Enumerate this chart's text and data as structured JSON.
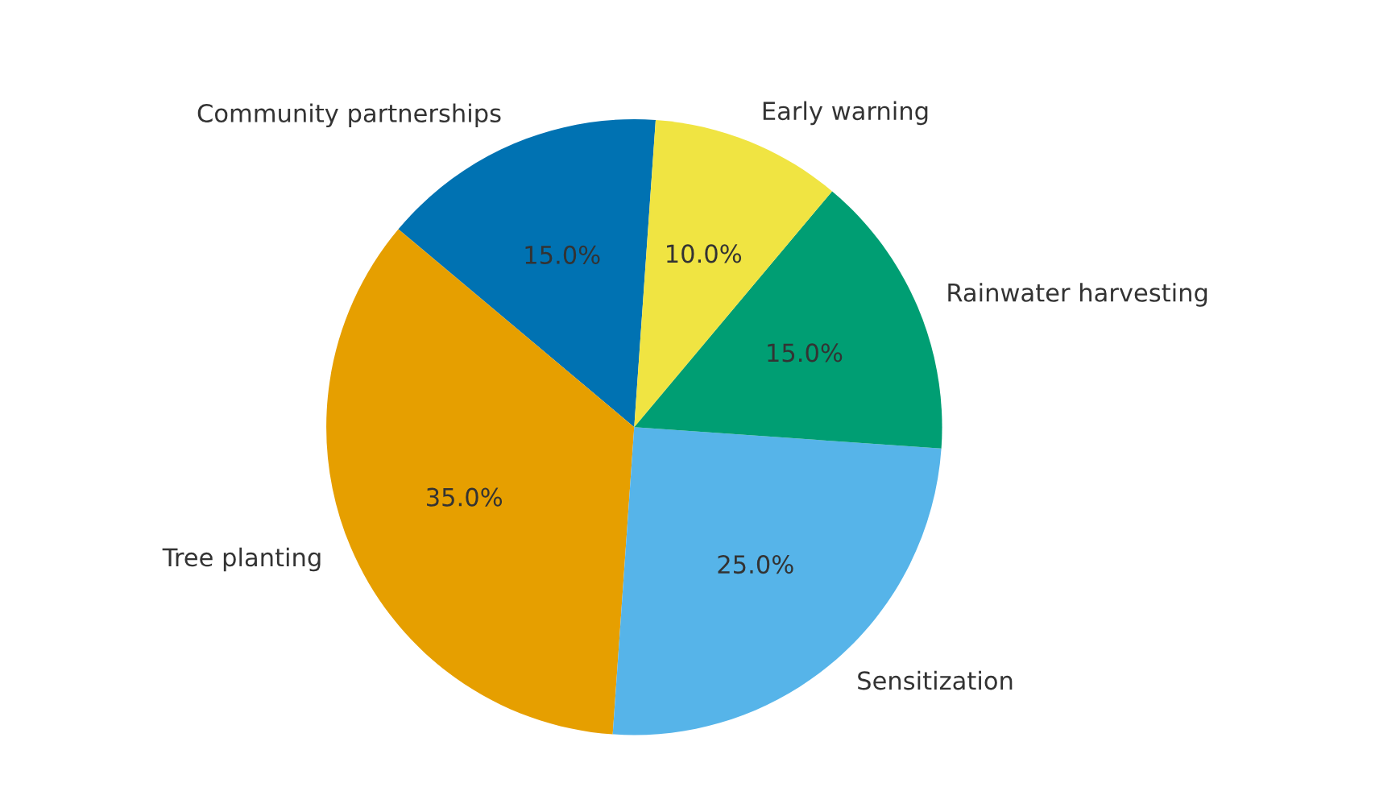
{
  "chart_data": {
    "type": "pie",
    "categories": [
      "Community partnerships",
      "Tree planting",
      "Sensitization",
      "Rainwater harvesting",
      "Early warning"
    ],
    "values": [
      15,
      35,
      25,
      15,
      10
    ],
    "value_labels": [
      "15.0%",
      "35.0%",
      "25.0%",
      "15.0%",
      "10.0%"
    ],
    "colors": [
      "#0072b2",
      "#e69f00",
      "#56b4e9",
      "#009e73",
      "#f0e442"
    ]
  }
}
